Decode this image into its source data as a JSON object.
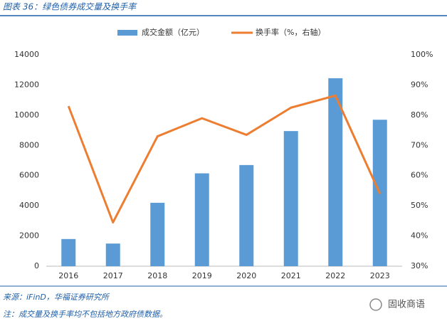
{
  "chart_data": {
    "type": "bar-line",
    "title": "图表 36：绿色债券成交量及换手率",
    "categories": [
      "2016",
      "2017",
      "2018",
      "2019",
      "2020",
      "2021",
      "2022",
      "2023"
    ],
    "series": [
      {
        "name": "成交金额（亿元）",
        "type": "bar",
        "color": "#5b9bd5",
        "values": [
          1800,
          1500,
          4200,
          6150,
          6700,
          8950,
          12450,
          9700
        ]
      },
      {
        "name": "换手率（%，右轴）",
        "type": "line",
        "axis": "y2",
        "color": "#ed7d31",
        "values": [
          83,
          44.5,
          73,
          79,
          73.5,
          82.5,
          86.5,
          54
        ]
      }
    ],
    "ylim": [
      0,
      14000
    ],
    "yticks": [
      0,
      2000,
      4000,
      6000,
      8000,
      10000,
      12000,
      14000
    ],
    "y2lim": [
      30,
      100
    ],
    "y2ticks": [
      {
        "value": 30,
        "label": "30%"
      },
      {
        "value": 40,
        "label": "40%"
      },
      {
        "value": 50,
        "label": "50%"
      },
      {
        "value": 60,
        "label": "60%"
      },
      {
        "value": 70,
        "label": "70%"
      },
      {
        "value": 80,
        "label": "80%"
      },
      {
        "value": 90,
        "label": "90%"
      },
      {
        "value": 100,
        "label": "100%"
      }
    ],
    "legend": "top"
  },
  "source": "来源：iFinD，华福证券研究所",
  "note": "注：成交量及换手率均不包括地方政府债数据。",
  "watermark": "固收商语"
}
